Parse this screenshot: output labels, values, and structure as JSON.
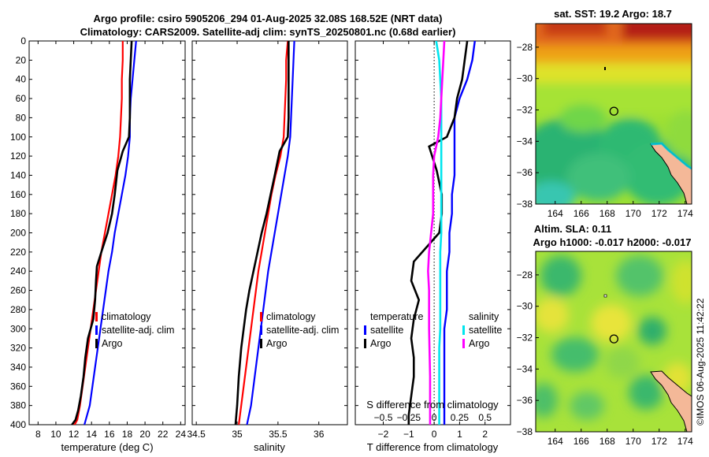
{
  "figure": {
    "title_line1": "Argo profile: csiro 5905206_294 01-Aug-2025 32.08S 168.52E (NRT data)",
    "title_line2": "Climatology: CARS2009. Satellite-adj clim: synTS_20250801.nc (0.68d earlier)",
    "stamp": "©IMOS 06-Aug-2025 11:42:22"
  },
  "colors": {
    "climatology": "#ff0000",
    "satellite": "#0000ff",
    "argo": "#000000",
    "salinity_satellite": "#00e5ee",
    "salinity_argo": "#ff00ff"
  },
  "chart_data": [
    {
      "type": "line",
      "title": "",
      "xlabel": "temperature (deg C)",
      "ylabel": "",
      "xlim": [
        7,
        24.5
      ],
      "ylim": [
        400,
        0
      ],
      "xticks": [
        8,
        10,
        12,
        14,
        16,
        18,
        20,
        22,
        24
      ],
      "yticks": [
        0,
        20,
        40,
        60,
        80,
        100,
        120,
        140,
        160,
        180,
        200,
        220,
        240,
        260,
        280,
        300,
        320,
        340,
        360,
        380,
        400
      ],
      "legend": {
        "position": "lower-center",
        "entries": [
          "climatology",
          "satellite-adj. clim",
          "Argo"
        ]
      },
      "series": [
        {
          "name": "climatology",
          "color": "#ff0000",
          "x": [
            17.5,
            17.5,
            17.4,
            17.4,
            17.3,
            17.2,
            17.0,
            16.7,
            16.3,
            15.9,
            15.5,
            15.1,
            14.8,
            14.5,
            14.2,
            13.9,
            13.6,
            13.3,
            13.0,
            12.7,
            12.4,
            12.1,
            11.9
          ],
          "y": [
            0,
            20,
            40,
            60,
            80,
            100,
            120,
            140,
            160,
            180,
            200,
            220,
            240,
            260,
            280,
            300,
            320,
            340,
            360,
            380,
            395,
            400,
            400
          ]
        },
        {
          "name": "satellite-adj. clim",
          "color": "#0000ff",
          "x": [
            19.0,
            18.8,
            18.6,
            18.4,
            18.3,
            18.3,
            18.1,
            17.8,
            17.4,
            17.0,
            16.6,
            16.3,
            15.9,
            15.6,
            15.3,
            15.0,
            14.7,
            14.4,
            14.1,
            13.8,
            13.2
          ],
          "y": [
            0,
            20,
            40,
            60,
            80,
            100,
            120,
            140,
            160,
            180,
            200,
            220,
            240,
            260,
            280,
            300,
            320,
            340,
            360,
            380,
            400
          ]
        },
        {
          "name": "Argo",
          "color": "#000000",
          "x": [
            18.5,
            18.4,
            18.3,
            18.3,
            18.3,
            18.2,
            17.5,
            16.9,
            16.6,
            16.3,
            15.8,
            15.1,
            14.6,
            14.5,
            14.4,
            14.2,
            13.6,
            13.3,
            13.1,
            12.8,
            12.5,
            12.2,
            11.8
          ],
          "y": [
            0,
            20,
            40,
            60,
            80,
            100,
            115,
            135,
            160,
            180,
            200,
            220,
            235,
            250,
            270,
            290,
            310,
            330,
            350,
            370,
            385,
            395,
            400
          ]
        }
      ]
    },
    {
      "type": "line",
      "title": "",
      "xlabel": "salinity",
      "ylabel": "",
      "xlim": [
        34.45,
        36.35
      ],
      "ylim": [
        400,
        0
      ],
      "xticks": [
        34.5,
        35,
        35.5,
        36
      ],
      "xticklabels": [
        "34.5",
        "35",
        "35.5",
        "36"
      ],
      "legend": {
        "position": "lower-center",
        "entries": [
          "climatology",
          "satellite-adj. clim",
          "Argo"
        ]
      },
      "series": [
        {
          "name": "climatology",
          "color": "#ff0000",
          "x": [
            35.62,
            35.6,
            35.6,
            35.59,
            35.58,
            35.57,
            35.53,
            35.47,
            35.42,
            35.38,
            35.34,
            35.3,
            35.26,
            35.23,
            35.2,
            35.17,
            35.14,
            35.11,
            35.08,
            35.05,
            35.02
          ],
          "y": [
            0,
            20,
            40,
            60,
            80,
            100,
            120,
            140,
            160,
            180,
            200,
            220,
            240,
            260,
            280,
            300,
            320,
            340,
            360,
            380,
            400
          ]
        },
        {
          "name": "satellite-adj. clim",
          "color": "#0000ff",
          "x": [
            35.7,
            35.69,
            35.68,
            35.67,
            35.66,
            35.65,
            35.62,
            35.58,
            35.54,
            35.5,
            35.46,
            35.42,
            35.38,
            35.35,
            35.32,
            35.29,
            35.26,
            35.23,
            35.2,
            35.17,
            35.12
          ],
          "y": [
            0,
            20,
            40,
            60,
            80,
            100,
            120,
            140,
            160,
            180,
            200,
            220,
            240,
            260,
            280,
            300,
            320,
            340,
            360,
            380,
            400
          ]
        },
        {
          "name": "Argo",
          "color": "#000000",
          "x": [
            35.63,
            35.63,
            35.63,
            35.63,
            35.63,
            35.62,
            35.52,
            35.46,
            35.41,
            35.36,
            35.3,
            35.25,
            35.2,
            35.15,
            35.11,
            35.08,
            35.05,
            35.02,
            35.0,
            34.98
          ],
          "y": [
            0,
            20,
            40,
            60,
            80,
            100,
            115,
            140,
            160,
            180,
            200,
            220,
            240,
            260,
            280,
            300,
            320,
            350,
            380,
            400
          ]
        }
      ]
    },
    {
      "type": "line",
      "title": "",
      "xlabel": "T difference from climatology",
      "xlabel_top": "S difference from climatology",
      "ylabel": "",
      "xlim": [
        -3.1,
        3.0
      ],
      "ylim": [
        400,
        0
      ],
      "xticks": [
        -2,
        -1,
        0,
        1,
        2
      ],
      "top_axis_ticks": [
        -0.5,
        -0.25,
        0,
        0.25,
        0.5
      ],
      "top_axis_ticklabels": [
        "-0.5",
        "-0.25",
        "0",
        "0.25",
        "0.5"
      ],
      "legend": [
        {
          "position": "lower-left",
          "heading": "temperature",
          "entries": [
            "satellite",
            "Argo"
          ]
        },
        {
          "position": "lower-right",
          "heading": "salinity",
          "entries": [
            "satellite",
            "Argo"
          ]
        }
      ],
      "series": [
        {
          "name": "temperature satellite",
          "color": "#0000ff",
          "x": [
            1.6,
            1.5,
            1.3,
            1.0,
            0.8,
            0.8,
            0.8,
            0.8,
            0.7,
            0.7,
            0.6,
            0.6,
            0.5,
            0.5,
            0.5,
            0.4,
            0.4,
            0.4,
            0.4,
            0.4,
            0.4
          ],
          "y": [
            0,
            20,
            40,
            60,
            80,
            100,
            120,
            140,
            160,
            180,
            200,
            220,
            240,
            260,
            280,
            300,
            320,
            340,
            360,
            380,
            400
          ]
        },
        {
          "name": "temperature Argo",
          "color": "#000000",
          "x": [
            1.3,
            1.2,
            1.1,
            0.9,
            0.8,
            0.5,
            -0.2,
            0.1,
            0.3,
            0.3,
            0.2,
            -0.3,
            -0.8,
            -0.9,
            -0.6,
            -0.8,
            -0.9,
            -0.8,
            -0.8,
            -0.9,
            -1.0,
            -1.0
          ],
          "y": [
            0,
            20,
            40,
            60,
            80,
            100,
            110,
            135,
            160,
            180,
            200,
            215,
            230,
            250,
            270,
            290,
            310,
            330,
            350,
            370,
            390,
            400
          ]
        },
        {
          "name": "salinity satellite",
          "color": "#00e5ee",
          "x": [
            0.02,
            0.05,
            0.06,
            0.07,
            0.07,
            0.07,
            0.07,
            0.07,
            0.07,
            0.07,
            0.07,
            0.06,
            0.06,
            0.06,
            0.06,
            0.06,
            0.05,
            0.05,
            0.05,
            0.05,
            0.05
          ],
          "y": [
            0,
            20,
            40,
            60,
            80,
            100,
            120,
            140,
            160,
            180,
            200,
            220,
            240,
            260,
            280,
            300,
            320,
            340,
            360,
            380,
            400
          ]
        },
        {
          "name": "salinity Argo",
          "color": "#ff00ff",
          "x": [
            0.1,
            0.09,
            0.08,
            0.07,
            0.06,
            0.04,
            0.0,
            -0.01,
            -0.01,
            -0.01,
            -0.03,
            -0.05,
            -0.06,
            -0.05,
            -0.05,
            -0.05,
            -0.04,
            -0.04
          ],
          "y": [
            0,
            20,
            40,
            60,
            80,
            100,
            120,
            140,
            160,
            180,
            200,
            220,
            240,
            260,
            280,
            300,
            350,
            400
          ]
        }
      ]
    },
    {
      "type": "heatmap",
      "title": "sat. SST: 19.2 Argo: 18.7",
      "xlim": [
        162.5,
        174.5
      ],
      "ylim": [
        -38,
        -26.5
      ],
      "xticks": [
        164,
        166,
        168,
        170,
        172,
        174
      ],
      "yticks": [
        -28,
        -30,
        -32,
        -34,
        -36,
        -38
      ],
      "marker": {
        "lon": 168.52,
        "lat": -32.08
      },
      "sst": {
        "satellite": 19.2,
        "argo": 18.7
      }
    },
    {
      "type": "heatmap",
      "title_line1": "Altim. SLA: 0.11",
      "title_line2": "Argo h1000: -0.017 h2000: -0.017",
      "xlim": [
        162.5,
        174.5
      ],
      "ylim": [
        -38,
        -26.5
      ],
      "xticks": [
        164,
        166,
        168,
        170,
        172,
        174
      ],
      "yticks": [
        -28,
        -30,
        -32,
        -34,
        -36,
        -38
      ],
      "marker": {
        "lon": 168.52,
        "lat": -32.08
      },
      "sla": {
        "altim": 0.11,
        "h1000": -0.017,
        "h2000": -0.017
      }
    }
  ]
}
